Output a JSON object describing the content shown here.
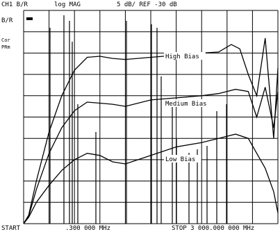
{
  "header": {
    "chan": "CH1 B/R",
    "log_mag": "log MAG",
    "scale": "5 dB/ REF -30 dB"
  },
  "left_labels": [
    "B/R",
    "Cor",
    "PRm"
  ],
  "footer": {
    "start": "START",
    "start_freq": ".300 000 MHz",
    "stop": "STOP 3 000.000 000 MHz"
  },
  "chart_data": {
    "type": "line",
    "xlim": [
      0,
      3000
    ],
    "ylim": [
      0,
      10
    ],
    "x_unit": "MHz",
    "grid": true,
    "series": [
      {
        "name": "High Bias",
        "x": [
          0,
          60,
          150,
          300,
          450,
          600,
          750,
          900,
          1050,
          1200,
          1500,
          1800,
          2100,
          2300,
          2450,
          2550,
          2650,
          2750,
          2850,
          2950,
          3000
        ],
        "y": [
          0,
          0.4,
          2,
          4.3,
          6,
          7.2,
          7.8,
          7.85,
          7.75,
          7.7,
          7.8,
          7.9,
          8.0,
          8.05,
          8.4,
          8.2,
          7.0,
          6.0,
          8.7,
          4.0,
          7.3
        ]
      },
      {
        "name": "Medium Bias",
        "x": [
          0,
          60,
          150,
          300,
          450,
          600,
          750,
          900,
          1050,
          1200,
          1500,
          1800,
          2100,
          2300,
          2500,
          2650,
          2750,
          2850,
          2950,
          3000
        ],
        "y": [
          0,
          0.35,
          1.6,
          3.3,
          4.5,
          5.3,
          5.7,
          5.65,
          5.6,
          5.5,
          5.8,
          5.9,
          6.0,
          6.1,
          6.3,
          6.2,
          5.0,
          6.4,
          4.5,
          6.2
        ]
      },
      {
        "name": "Low Bias",
        "x": [
          0,
          60,
          150,
          300,
          450,
          600,
          750,
          900,
          1050,
          1200,
          1350,
          1500,
          1800,
          2100,
          2300,
          2500,
          2650,
          2750,
          2850,
          2950,
          3000
        ],
        "y": [
          0,
          0.3,
          1.0,
          1.8,
          2.5,
          3.0,
          3.3,
          3.2,
          2.9,
          2.8,
          3.0,
          3.2,
          3.6,
          3.8,
          4.0,
          4.2,
          4.0,
          3.3,
          2.6,
          1.5,
          0.5
        ]
      }
    ]
  }
}
